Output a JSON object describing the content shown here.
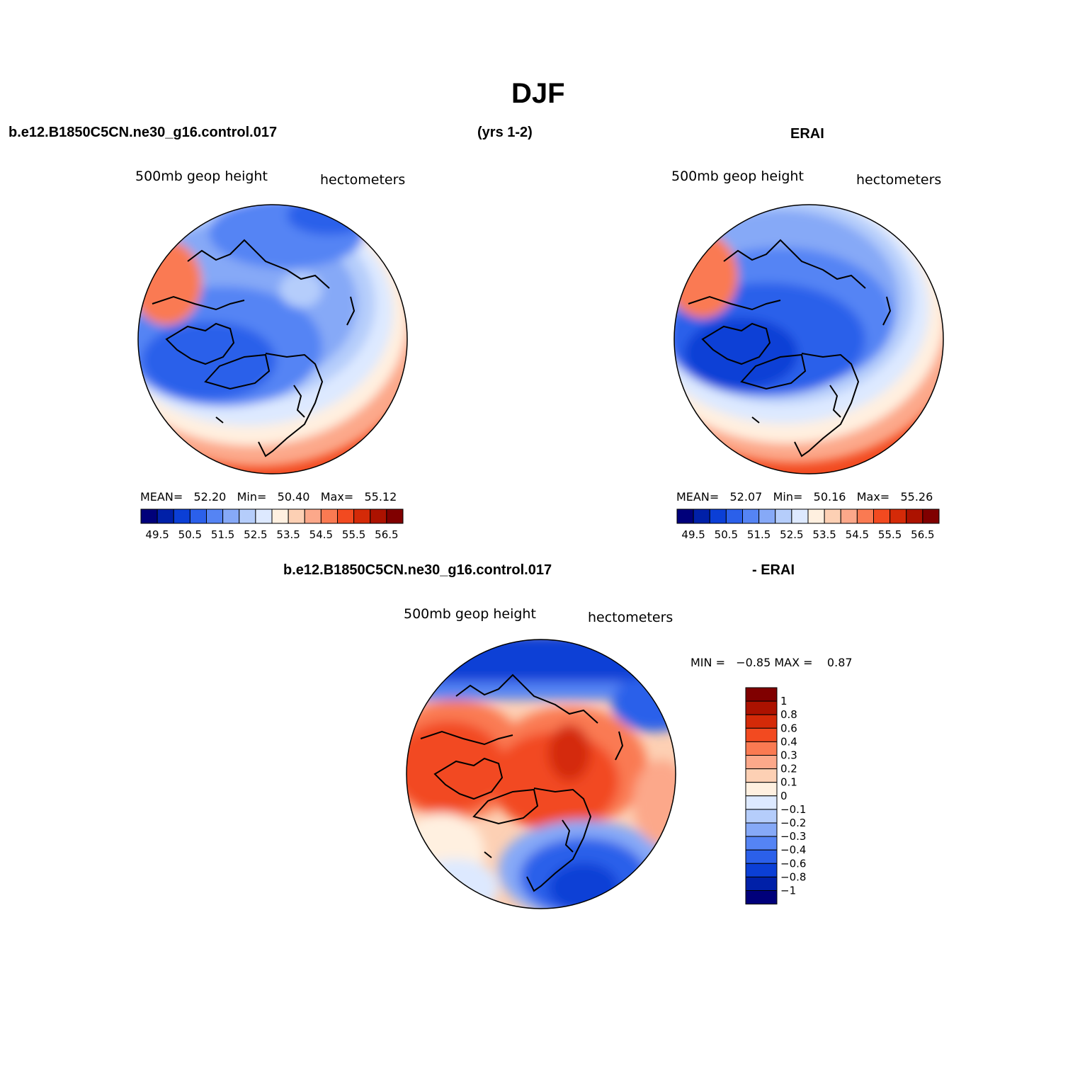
{
  "page": {
    "title": "DJF",
    "header_left": "b.e12.B1850C5CN.ne30_g16.control.017",
    "header_center": "(yrs 1-2)",
    "header_right": "ERAI",
    "diff_header_left": "b.e12.B1850C5CN.ne30_g16.control.017",
    "diff_header_right": "- ERAI"
  },
  "palettes": {
    "mean": [
      "#00007a",
      "#0020a8",
      "#0b3fd6",
      "#2b60ea",
      "#5584f4",
      "#86a9f7",
      "#b5cdfb",
      "#dde9ff",
      "#fff0e0",
      "#fdd0b4",
      "#fca88a",
      "#fa7a52",
      "#f24a20",
      "#d42a08",
      "#ac1200",
      "#800000"
    ],
    "diff": [
      "#00007a",
      "#0020a8",
      "#0b3fd6",
      "#2b60ea",
      "#5584f4",
      "#86a9f7",
      "#b5cdfb",
      "#dde9ff",
      "#fff0e0",
      "#fdd0b4",
      "#fca88a",
      "#fa7a52",
      "#f24a20",
      "#d42a08",
      "#ac1200",
      "#800000"
    ]
  },
  "panels": [
    {
      "id": "model",
      "left_label": "500mb  geop  height",
      "right_label": "hectometers",
      "stats": {
        "mean_label": "MEAN=",
        "mean": "52.20",
        "min_label": "Min=",
        "min": "50.40",
        "max_label": "Max=",
        "max": "55.12"
      },
      "colorbar_ticks": [
        "49.5",
        "50.5",
        "51.5",
        "52.5",
        "53.5",
        "54.5",
        "55.5",
        "56.5"
      ]
    },
    {
      "id": "obs",
      "left_label": "500mb  geop  height",
      "right_label": "hectometers",
      "stats": {
        "mean_label": "MEAN=",
        "mean": "52.07",
        "min_label": "Min=",
        "min": "50.16",
        "max_label": "Max=",
        "max": "55.26"
      },
      "colorbar_ticks": [
        "49.5",
        "50.5",
        "51.5",
        "52.5",
        "53.5",
        "54.5",
        "55.5",
        "56.5"
      ]
    },
    {
      "id": "diff",
      "left_label": "500mb  geop  height",
      "right_label": "hectometers",
      "stats": {
        "min_label": "MIN =",
        "min": "−0.85",
        "max_label": "MAX =",
        "max": "0.87"
      },
      "colorbar_ticks": [
        "1",
        "0.8",
        "0.6",
        "0.4",
        "0.3",
        "0.2",
        "0.1",
        "0",
        "−0.1",
        "−0.2",
        "−0.3",
        "−0.4",
        "−0.6",
        "−0.8",
        "−1"
      ]
    }
  ]
}
